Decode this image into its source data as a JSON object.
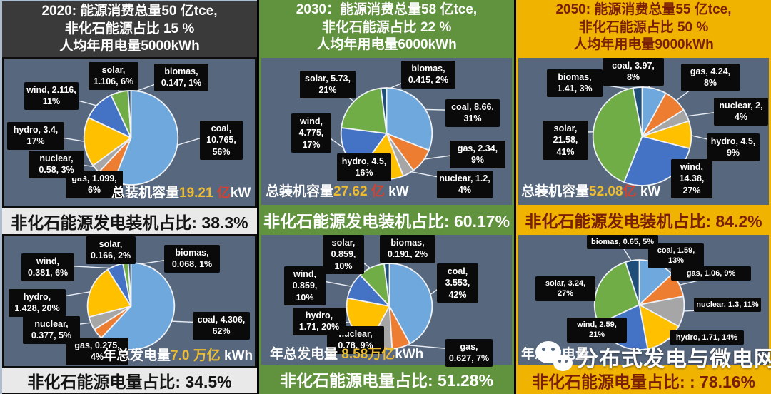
{
  "colors": {
    "coal": "#6fa8dc",
    "gas": "#ed7d31",
    "nuclear": "#a6a6a6",
    "hydro": "#ffc000",
    "wind": "#4472c4",
    "solar": "#70ad47",
    "biomas": "#1f4e79"
  },
  "chart_data": [
    {
      "type": "pie",
      "title": "2020 总装机容量 19.21 亿kW",
      "categories": [
        "coal",
        "gas",
        "nuclear",
        "hydro",
        "wind",
        "solar",
        "biomas"
      ],
      "values": [
        10.765,
        1.099,
        0.58,
        3.4,
        2.116,
        1.106,
        0.147
      ],
      "percents": [
        56,
        6,
        3,
        17,
        11,
        6,
        1
      ],
      "total": "19.21",
      "unit": "亿kW"
    },
    {
      "type": "pie",
      "title": "2020 年总发电量 7.0 万亿kWh",
      "categories": [
        "coal",
        "gas",
        "nuclear",
        "hydro",
        "wind",
        "solar",
        "biomas"
      ],
      "values": [
        4.306,
        0.275,
        0.377,
        1.428,
        0.381,
        0.166,
        0.068
      ],
      "percents": [
        62,
        4,
        5,
        20,
        6,
        2,
        1
      ],
      "total": "7.0",
      "unit": "万亿kWh"
    },
    {
      "type": "pie",
      "title": "2030 总装机容量 27.62 亿kW",
      "categories": [
        "coal",
        "gas",
        "nuclear",
        "hydro",
        "wind",
        "solar",
        "biomas"
      ],
      "values": [
        8.66,
        2.34,
        1.2,
        4.5,
        4.775,
        5.73,
        0.415
      ],
      "percents": [
        31,
        9,
        4,
        16,
        17,
        21,
        2
      ],
      "total": "27.62",
      "unit": "亿kW"
    },
    {
      "type": "pie",
      "title": "2030 年总发电量 8.58 万亿kWh",
      "categories": [
        "coal",
        "gas",
        "nuclear",
        "hydro",
        "wind",
        "solar",
        "biomas"
      ],
      "values": [
        3.553,
        0.627,
        0.78,
        1.71,
        0.859,
        0.859,
        0.191
      ],
      "percents": [
        42,
        7,
        9,
        20,
        10,
        10,
        2
      ],
      "total": "8.58",
      "unit": "万亿kWh"
    },
    {
      "type": "pie",
      "title": "2050 总装机容量 52.08 亿kW",
      "categories": [
        "coal",
        "gas",
        "nuclear",
        "hydro",
        "wind",
        "solar",
        "biomas"
      ],
      "values": [
        3.97,
        4.24,
        2,
        4.5,
        14.38,
        21.58,
        1.41
      ],
      "percents": [
        8,
        8,
        4,
        9,
        27,
        41,
        3
      ],
      "total": "52.08",
      "unit": "亿kW"
    },
    {
      "type": "pie",
      "title": "2050 年总发电量",
      "categories": [
        "coal",
        "gas",
        "nuclear",
        "hydro",
        "wind",
        "solar",
        "biomas"
      ],
      "values": [
        1.59,
        1.06,
        1.3,
        1.71,
        2.59,
        3.24,
        0.65
      ],
      "percents": [
        13,
        9,
        11,
        14,
        21,
        27,
        5
      ]
    }
  ],
  "columns": [
    {
      "year": "2020",
      "header": [
        "2020: 能源消费总量50 亿tce,",
        "非化石能源占比 15 %",
        "人均年用电量5000kWh"
      ],
      "capacity_caption": {
        "prefix": "总装机容量",
        "value": "19.21",
        "unit_red": " 亿",
        "unit_white": "kW"
      },
      "capacity_strip": "非化石能源发电装机占比: 38.3%",
      "generation_caption": {
        "prefix": "年总发电量",
        "value": "7.0 万亿",
        "unit_red": "",
        "unit_white": " kWh"
      },
      "generation_strip": "非化石能源电量占比: 34.5%"
    },
    {
      "year": "2030",
      "header": [
        "2030：能源消费总量58 亿tce,",
        "非化石能源占比 22 %",
        "人均年用电量6000kWh"
      ],
      "capacity_caption": {
        "prefix": "总装机容量",
        "value": "27.62",
        "unit_red": " 亿",
        "unit_white": " kW"
      },
      "capacity_strip": "非化石能源发电装机占比: 60.17%",
      "generation_caption": {
        "prefix": "年总发电量 ",
        "value": "8.58万亿",
        "unit_red": "",
        "unit_white": "kWh"
      },
      "generation_strip": "非化石能源电量占比: 51.28%"
    },
    {
      "year": "2050",
      "header": [
        "2050: 能源消费总量55 亿tce,",
        "非化石能源占比 50 %",
        "人均年用电量9000kWh"
      ],
      "capacity_caption": {
        "prefix": "总装机容量",
        "value": "52.08",
        "unit_red": "亿",
        "unit_white": " kW"
      },
      "capacity_strip": "非化石能源发电装机占比: 84.2%",
      "generation_caption": {
        "prefix": "年总发电量",
        "value": "",
        "unit_red": "",
        "unit_white": ""
      },
      "generation_strip": "非化石能源电量占比: : 78.16%"
    }
  ],
  "watermark": {
    "text": "分布式发电与微电网",
    "icon": "wechat-icon"
  }
}
